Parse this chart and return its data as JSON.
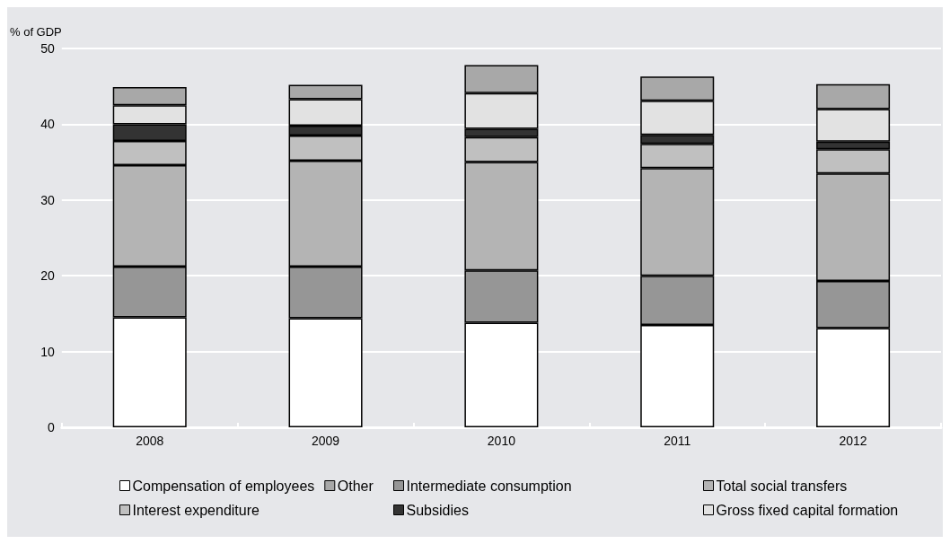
{
  "chart_data": {
    "type": "bar",
    "stacked": true,
    "ylabel": "% of GDP",
    "categories": [
      "2008",
      "2009",
      "2010",
      "2011",
      "2012"
    ],
    "ylim": [
      0,
      50
    ],
    "yticks": [
      0,
      10,
      20,
      30,
      40,
      50
    ],
    "grid": "y",
    "legend": "bottom",
    "series": [
      {
        "name": "Compensation of employees",
        "color": "#ffffff",
        "values": [
          14.5,
          14.4,
          13.8,
          13.5,
          13.1
        ]
      },
      {
        "name": "Intermediate consumption",
        "color": "#969696",
        "values": [
          6.7,
          6.8,
          6.9,
          6.5,
          6.2
        ]
      },
      {
        "name": "Total social transfers",
        "color": "#b4b4b4",
        "values": [
          13.4,
          14.0,
          14.3,
          14.2,
          14.2
        ]
      },
      {
        "name": "Interest expenditure",
        "color": "#c0c0c0",
        "values": [
          3.2,
          3.3,
          3.3,
          3.2,
          3.2
        ]
      },
      {
        "name": "Subsidies",
        "color": "#333333",
        "values": [
          2.2,
          1.3,
          1.1,
          1.2,
          1.0
        ]
      },
      {
        "name": "Gross fixed capital formation",
        "color": "#e2e2e2",
        "values": [
          2.5,
          3.5,
          4.7,
          4.5,
          4.3
        ]
      },
      {
        "name": "Other",
        "color": "#a8a8a8",
        "values": [
          2.4,
          1.9,
          3.7,
          3.2,
          3.3
        ]
      }
    ]
  }
}
